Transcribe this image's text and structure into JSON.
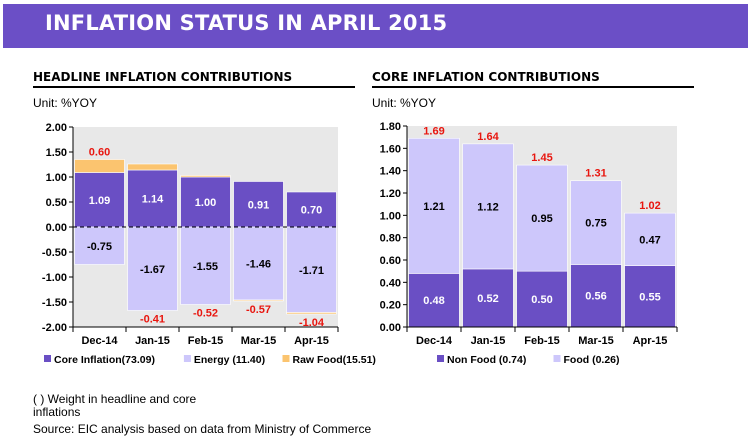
{
  "banner": {
    "title": "INFLATION STATUS IN APRIL 2015"
  },
  "colors": {
    "banner": "#6b4fc6",
    "core_inflation": "#6a4fc4",
    "energy": "#cdc7fb",
    "raw_food": "#fbc46f",
    "non_food": "#6a4fc4",
    "food": "#cdc7fb",
    "plot_bg": "#e8e8e8",
    "total_label": "#e8160f"
  },
  "left_panel": {
    "title": "HEADLINE INFLATION CONTRIBUTIONS",
    "unit": "Unit: %YOY"
  },
  "right_panel": {
    "title": "CORE INFLATION CONTRIBUTIONS",
    "unit": "Unit: %YOY"
  },
  "footnotes": {
    "weight_note": "( ) Weight in headline and core inflations",
    "source": "Source: EIC analysis based on data from Ministry of Commerce"
  },
  "chart_data": [
    {
      "type": "bar",
      "stacked": true,
      "title": "HEADLINE INFLATION CONTRIBUTIONS",
      "ylabel": "Unit: %YOY",
      "categories": [
        "Dec-14",
        "Jan-15",
        "Feb-15",
        "Mar-15",
        "Apr-15"
      ],
      "ylim": [
        -2.0,
        2.0
      ],
      "yticks": [
        "-2.00",
        "-1.50",
        "-1.00",
        "-0.50",
        "0.00",
        "0.50",
        "1.00",
        "1.50",
        "2.00"
      ],
      "series": [
        {
          "name": "Core Inflation(73.09)",
          "values": [
            1.09,
            1.14,
            1.0,
            0.91,
            0.7
          ],
          "labels": [
            "1.09",
            "1.14",
            "1.00",
            "0.91",
            "0.70"
          ]
        },
        {
          "name": "Energy (11.40)",
          "values": [
            -0.75,
            -1.67,
            -1.55,
            -1.46,
            -1.71
          ],
          "labels": [
            "-0.75",
            "-1.67",
            "-1.55",
            "-1.46",
            "-1.71"
          ]
        },
        {
          "name": "Raw Food(15.51)",
          "values": [
            0.26,
            0.12,
            0.03,
            -0.02,
            -0.03
          ]
        }
      ],
      "totals": [
        0.6,
        -0.41,
        -0.52,
        -0.57,
        -1.04
      ],
      "total_labels": [
        "0.60",
        "-0.41",
        "-0.52",
        "-0.57",
        "-1.04"
      ],
      "legend": "bottom",
      "grid": false
    },
    {
      "type": "bar",
      "stacked": true,
      "title": "CORE INFLATION CONTRIBUTIONS",
      "ylabel": "Unit: %YOY",
      "categories": [
        "Dec-14",
        "Jan-15",
        "Feb-15",
        "Mar-15",
        "Apr-15"
      ],
      "ylim": [
        0.0,
        1.8
      ],
      "yticks": [
        "0.00",
        "0.20",
        "0.40",
        "0.60",
        "0.80",
        "1.00",
        "1.20",
        "1.40",
        "1.60",
        "1.80"
      ],
      "series": [
        {
          "name": "Non Food (0.74)",
          "values": [
            0.48,
            0.52,
            0.5,
            0.56,
            0.55
          ],
          "labels": [
            "0.48",
            "0.52",
            "0.50",
            "0.56",
            "0.55"
          ]
        },
        {
          "name": "Food (0.26)",
          "values": [
            1.21,
            1.12,
            0.95,
            0.75,
            0.47
          ],
          "labels": [
            "1.21",
            "1.12",
            "0.95",
            "0.75",
            "0.47"
          ]
        }
      ],
      "totals": [
        1.69,
        1.64,
        1.45,
        1.31,
        1.02
      ],
      "total_labels": [
        "1.69",
        "1.64",
        "1.45",
        "1.31",
        "1.02"
      ],
      "legend": "bottom",
      "grid": false
    }
  ]
}
